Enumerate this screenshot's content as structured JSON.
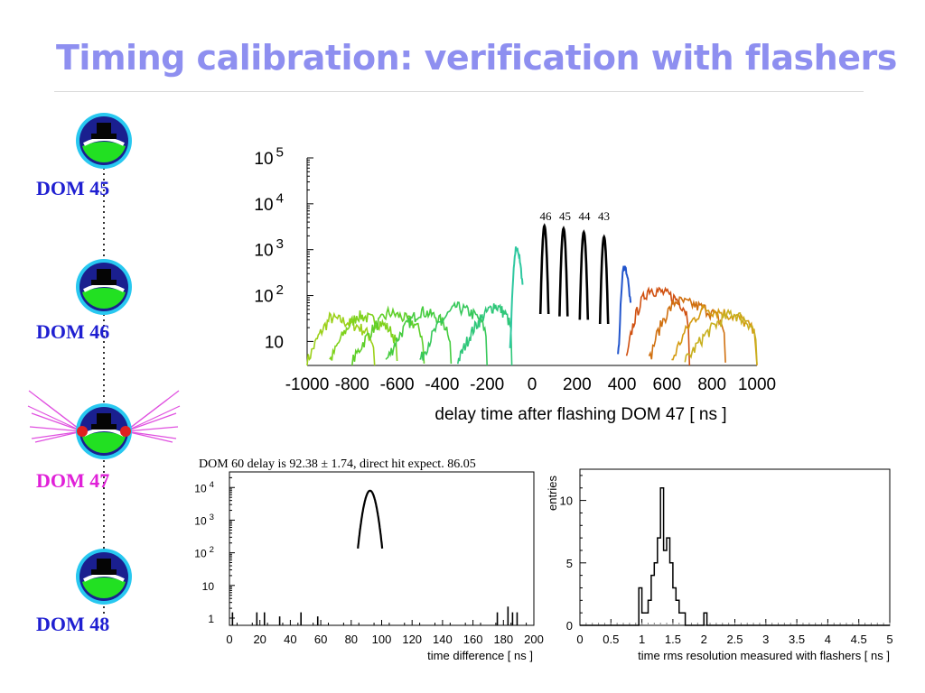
{
  "slide": {
    "title": "Timing calibration: verification with flashers"
  },
  "doms": [
    {
      "label": "DOM 45",
      "color": "#1f1fd1",
      "flashing": false
    },
    {
      "label": "DOM 46",
      "color": "#1f1fd1",
      "flashing": false
    },
    {
      "label": "DOM 47",
      "color": "#e020d8",
      "flashing": true
    },
    {
      "label": "DOM 48",
      "color": "#1f1fd1",
      "flashing": false
    }
  ],
  "chart_data": [
    {
      "type": "line",
      "xlabel": "delay time after flashing DOM 47 [ ns ]",
      "y_scale": "log",
      "xlim": [
        -1000,
        1000
      ],
      "ylim": [
        3,
        100000
      ],
      "x_ticks": [
        "-1000",
        "-800",
        "-600",
        "-400",
        "-200",
        "0",
        "200",
        "400",
        "600",
        "800",
        "1000"
      ],
      "y_ticks": [
        {
          "base": "10",
          "exp": ""
        },
        {
          "base": "10",
          "exp": "2"
        },
        {
          "base": "10",
          "exp": "3"
        },
        {
          "base": "10",
          "exp": "4"
        },
        {
          "base": "10",
          "exp": "5"
        }
      ],
      "peak_labels": [
        "46",
        "45",
        "44",
        "43"
      ],
      "black_peaks": [
        {
          "label": "46",
          "x": 55,
          "peak": 3300
        },
        {
          "label": "45",
          "x": 140,
          "peak": 2900
        },
        {
          "label": "44",
          "x": 230,
          "peak": 2400
        },
        {
          "label": "43",
          "x": 320,
          "peak": 1900
        }
      ],
      "colored_peaks": [
        {
          "x": -70,
          "peak": 1100,
          "color": "#2fc8a0"
        },
        {
          "x": 410,
          "peak": 420,
          "color": "#2255cc"
        }
      ],
      "background_bumps": [
        {
          "start": -1000,
          "peak_x": -900,
          "end": -700,
          "level": 30,
          "color": "#9cd11a"
        },
        {
          "start": -900,
          "peak_x": -780,
          "end": -600,
          "level": 35,
          "color": "#7fd21c"
        },
        {
          "start": -800,
          "peak_x": -640,
          "end": -480,
          "level": 40,
          "color": "#5fcf2a"
        },
        {
          "start": -650,
          "peak_x": -500,
          "end": -360,
          "level": 45,
          "color": "#46cc40"
        },
        {
          "start": -500,
          "peak_x": -340,
          "end": -200,
          "level": 55,
          "color": "#36c85a"
        },
        {
          "start": -330,
          "peak_x": -170,
          "end": -90,
          "level": 60,
          "color": "#2fc77a"
        },
        {
          "start": 420,
          "peak_x": 520,
          "end": 700,
          "level": 140,
          "color": "#d05010"
        },
        {
          "start": 520,
          "peak_x": 640,
          "end": 860,
          "level": 75,
          "color": "#d07010"
        },
        {
          "start": 620,
          "peak_x": 760,
          "end": 1000,
          "level": 50,
          "color": "#d49a10"
        },
        {
          "start": 680,
          "peak_x": 880,
          "end": 1000,
          "level": 40,
          "color": "#c8b020"
        }
      ]
    },
    {
      "type": "line",
      "title": "DOM 60 delay is 92.38 ± 1.74, direct hit expect. 86.05",
      "xlabel": "time difference [ ns ]",
      "y_scale": "log",
      "xlim": [
        0,
        200
      ],
      "ylim": [
        0.6,
        30000
      ],
      "x_ticks": [
        "0",
        "20",
        "40",
        "60",
        "80",
        "100",
        "120",
        "140",
        "160",
        "180",
        "200"
      ],
      "y_ticks": [
        {
          "base": "1",
          "exp": ""
        },
        {
          "base": "10",
          "exp": ""
        },
        {
          "base": "10",
          "exp": "2"
        },
        {
          "base": "10",
          "exp": "3"
        },
        {
          "base": "10",
          "exp": "4"
        }
      ],
      "peak": {
        "mean": 92.38,
        "sigma": 1.74,
        "height": 8000
      },
      "spikes": [
        {
          "x": 2,
          "count": 2
        },
        {
          "x": 18,
          "count": 2
        },
        {
          "x": 23,
          "count": 2
        },
        {
          "x": 33,
          "count": 1.5
        },
        {
          "x": 47,
          "count": 2
        },
        {
          "x": 58,
          "count": 1.5
        },
        {
          "x": 176,
          "count": 2
        },
        {
          "x": 183,
          "count": 3
        },
        {
          "x": 186,
          "count": 2
        },
        {
          "x": 189,
          "count": 2
        }
      ]
    },
    {
      "type": "bar",
      "ylabel": "entries",
      "xlabel": "time rms resolution measured with flashers [ ns ]",
      "xlim": [
        0,
        5
      ],
      "ylim": [
        0,
        12.5
      ],
      "bin_width": 0.05,
      "x_ticks": [
        "0",
        "0.5",
        "1",
        "1.5",
        "2",
        "2.5",
        "3",
        "3.5",
        "4",
        "4.5",
        "5"
      ],
      "y_ticks": [
        "0",
        "5",
        "10"
      ],
      "bins": [
        {
          "x": 0.95,
          "count": 3
        },
        {
          "x": 1.0,
          "count": 1
        },
        {
          "x": 1.05,
          "count": 1
        },
        {
          "x": 1.1,
          "count": 2
        },
        {
          "x": 1.15,
          "count": 4
        },
        {
          "x": 1.2,
          "count": 5
        },
        {
          "x": 1.25,
          "count": 7
        },
        {
          "x": 1.3,
          "count": 11
        },
        {
          "x": 1.35,
          "count": 6
        },
        {
          "x": 1.4,
          "count": 7
        },
        {
          "x": 1.45,
          "count": 5
        },
        {
          "x": 1.5,
          "count": 3
        },
        {
          "x": 1.55,
          "count": 2
        },
        {
          "x": 1.6,
          "count": 1
        },
        {
          "x": 1.65,
          "count": 1
        },
        {
          "x": 2.0,
          "count": 1
        }
      ]
    }
  ]
}
